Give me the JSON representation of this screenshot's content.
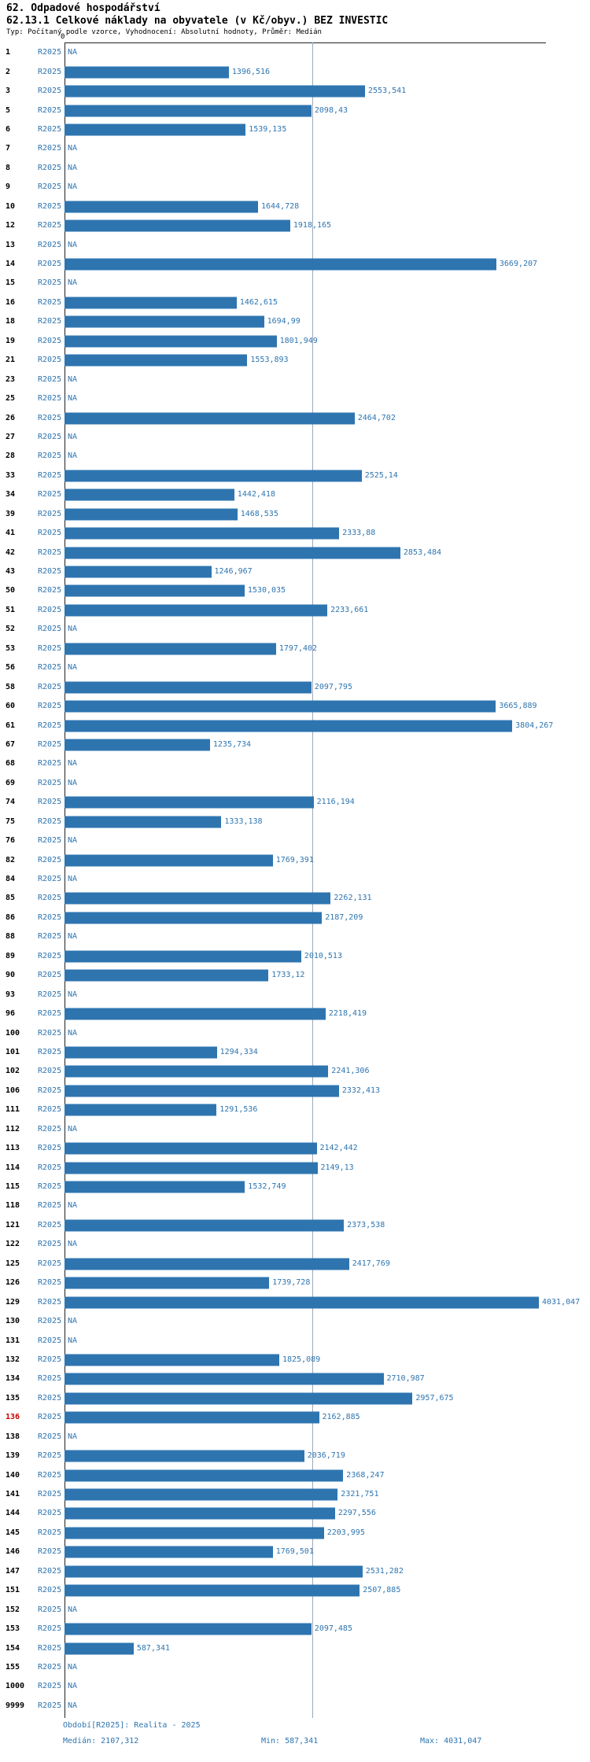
{
  "header": {
    "title": "62. Odpadové hospodářství",
    "subtitle": "62.13.1 Celkové náklady na obyvatele (v Kč/obyv.) BEZ INVESTIC",
    "meta": "Typ: Počítaný podle vzorce, Vyhodnocení: Absolutní hodnoty, Průměr: Medián"
  },
  "footer": {
    "period": "Období[R2025]: Realita - 2025",
    "median": "Medián: 2107,312",
    "min": "Min: 587,341",
    "max": "Max: 4031,047"
  },
  "colors": {
    "bar": "#2e75b0",
    "value_text": "#2e75b0",
    "highlight_row_id": "#cc0000",
    "median_line": "#9aa9b8",
    "axis": "#222222"
  },
  "chart_data": {
    "type": "bar",
    "orientation": "horizontal",
    "title": "62.13.1 Celkové náklady na obyvatele (v Kč/obyv.) BEZ INVESTIC",
    "series_label": "R2025",
    "x_axis": {
      "zero_label": "0",
      "min": 0
    },
    "median_value": 2107.312,
    "min_value": 587.341,
    "max_value": 4031.047,
    "grid": "off",
    "rows": [
      {
        "id": "1",
        "label": "NA",
        "value": null
      },
      {
        "id": "2",
        "label": "1396,516",
        "value": 1396.516
      },
      {
        "id": "3",
        "label": "2553,541",
        "value": 2553.541
      },
      {
        "id": "5",
        "label": "2098,43",
        "value": 2098.43
      },
      {
        "id": "6",
        "label": "1539,135",
        "value": 1539.135
      },
      {
        "id": "7",
        "label": "NA",
        "value": null
      },
      {
        "id": "8",
        "label": "NA",
        "value": null
      },
      {
        "id": "9",
        "label": "NA",
        "value": null
      },
      {
        "id": "10",
        "label": "1644,728",
        "value": 1644.728
      },
      {
        "id": "12",
        "label": "1918,165",
        "value": 1918.165
      },
      {
        "id": "13",
        "label": "NA",
        "value": null
      },
      {
        "id": "14",
        "label": "3669,207",
        "value": 3669.207
      },
      {
        "id": "15",
        "label": "NA",
        "value": null
      },
      {
        "id": "16",
        "label": "1462,615",
        "value": 1462.615
      },
      {
        "id": "18",
        "label": "1694,99",
        "value": 1694.99
      },
      {
        "id": "19",
        "label": "1801,949",
        "value": 1801.949
      },
      {
        "id": "21",
        "label": "1553,893",
        "value": 1553.893
      },
      {
        "id": "23",
        "label": "NA",
        "value": null
      },
      {
        "id": "25",
        "label": "NA",
        "value": null
      },
      {
        "id": "26",
        "label": "2464,702",
        "value": 2464.702
      },
      {
        "id": "27",
        "label": "NA",
        "value": null
      },
      {
        "id": "28",
        "label": "NA",
        "value": null
      },
      {
        "id": "33",
        "label": "2525,14",
        "value": 2525.14
      },
      {
        "id": "34",
        "label": "1442,418",
        "value": 1442.418
      },
      {
        "id": "39",
        "label": "1468,535",
        "value": 1468.535
      },
      {
        "id": "41",
        "label": "2333,88",
        "value": 2333.88
      },
      {
        "id": "42",
        "label": "2853,484",
        "value": 2853.484
      },
      {
        "id": "43",
        "label": "1246,967",
        "value": 1246.967
      },
      {
        "id": "50",
        "label": "1530,035",
        "value": 1530.035
      },
      {
        "id": "51",
        "label": "2233,661",
        "value": 2233.661
      },
      {
        "id": "52",
        "label": "NA",
        "value": null
      },
      {
        "id": "53",
        "label": "1797,402",
        "value": 1797.402
      },
      {
        "id": "56",
        "label": "NA",
        "value": null
      },
      {
        "id": "58",
        "label": "2097,795",
        "value": 2097.795
      },
      {
        "id": "60",
        "label": "3665,889",
        "value": 3665.889
      },
      {
        "id": "61",
        "label": "3804,267",
        "value": 3804.267
      },
      {
        "id": "67",
        "label": "1235,734",
        "value": 1235.734
      },
      {
        "id": "68",
        "label": "NA",
        "value": null
      },
      {
        "id": "69",
        "label": "NA",
        "value": null
      },
      {
        "id": "74",
        "label": "2116,194",
        "value": 2116.194
      },
      {
        "id": "75",
        "label": "1333,138",
        "value": 1333.138
      },
      {
        "id": "76",
        "label": "NA",
        "value": null
      },
      {
        "id": "82",
        "label": "1769,391",
        "value": 1769.391
      },
      {
        "id": "84",
        "label": "NA",
        "value": null
      },
      {
        "id": "85",
        "label": "2262,131",
        "value": 2262.131
      },
      {
        "id": "86",
        "label": "2187,209",
        "value": 2187.209
      },
      {
        "id": "88",
        "label": "NA",
        "value": null
      },
      {
        "id": "89",
        "label": "2010,513",
        "value": 2010.513
      },
      {
        "id": "90",
        "label": "1733,12",
        "value": 1733.12
      },
      {
        "id": "93",
        "label": "NA",
        "value": null
      },
      {
        "id": "96",
        "label": "2218,419",
        "value": 2218.419
      },
      {
        "id": "100",
        "label": "NA",
        "value": null
      },
      {
        "id": "101",
        "label": "1294,334",
        "value": 1294.334
      },
      {
        "id": "102",
        "label": "2241,306",
        "value": 2241.306
      },
      {
        "id": "106",
        "label": "2332,413",
        "value": 2332.413
      },
      {
        "id": "111",
        "label": "1291,536",
        "value": 1291.536
      },
      {
        "id": "112",
        "label": "NA",
        "value": null
      },
      {
        "id": "113",
        "label": "2142,442",
        "value": 2142.442
      },
      {
        "id": "114",
        "label": "2149,13",
        "value": 2149.13
      },
      {
        "id": "115",
        "label": "1532,749",
        "value": 1532.749
      },
      {
        "id": "118",
        "label": "NA",
        "value": null
      },
      {
        "id": "121",
        "label": "2373,538",
        "value": 2373.538
      },
      {
        "id": "122",
        "label": "NA",
        "value": null
      },
      {
        "id": "125",
        "label": "2417,769",
        "value": 2417.769
      },
      {
        "id": "126",
        "label": "1739,728",
        "value": 1739.728
      },
      {
        "id": "129",
        "label": "4031,047",
        "value": 4031.047
      },
      {
        "id": "130",
        "label": "NA",
        "value": null
      },
      {
        "id": "131",
        "label": "NA",
        "value": null
      },
      {
        "id": "132",
        "label": "1825,089",
        "value": 1825.089
      },
      {
        "id": "134",
        "label": "2710,987",
        "value": 2710.987
      },
      {
        "id": "135",
        "label": "2957,675",
        "value": 2957.675
      },
      {
        "id": "136",
        "label": "2162,885",
        "value": 2162.885,
        "highlight": true
      },
      {
        "id": "138",
        "label": "NA",
        "value": null
      },
      {
        "id": "139",
        "label": "2036,719",
        "value": 2036.719
      },
      {
        "id": "140",
        "label": "2368,247",
        "value": 2368.247
      },
      {
        "id": "141",
        "label": "2321,751",
        "value": 2321.751
      },
      {
        "id": "144",
        "label": "2297,556",
        "value": 2297.556
      },
      {
        "id": "145",
        "label": "2203,995",
        "value": 2203.995
      },
      {
        "id": "146",
        "label": "1769,501",
        "value": 1769.501
      },
      {
        "id": "147",
        "label": "2531,282",
        "value": 2531.282
      },
      {
        "id": "151",
        "label": "2507,885",
        "value": 2507.885
      },
      {
        "id": "152",
        "label": "NA",
        "value": null
      },
      {
        "id": "153",
        "label": "2097,485",
        "value": 2097.485
      },
      {
        "id": "154",
        "label": "587,341",
        "value": 587.341
      },
      {
        "id": "155",
        "label": "NA",
        "value": null
      },
      {
        "id": "1000",
        "label": "NA",
        "value": null
      },
      {
        "id": "9999",
        "label": "NA",
        "value": null
      }
    ]
  }
}
